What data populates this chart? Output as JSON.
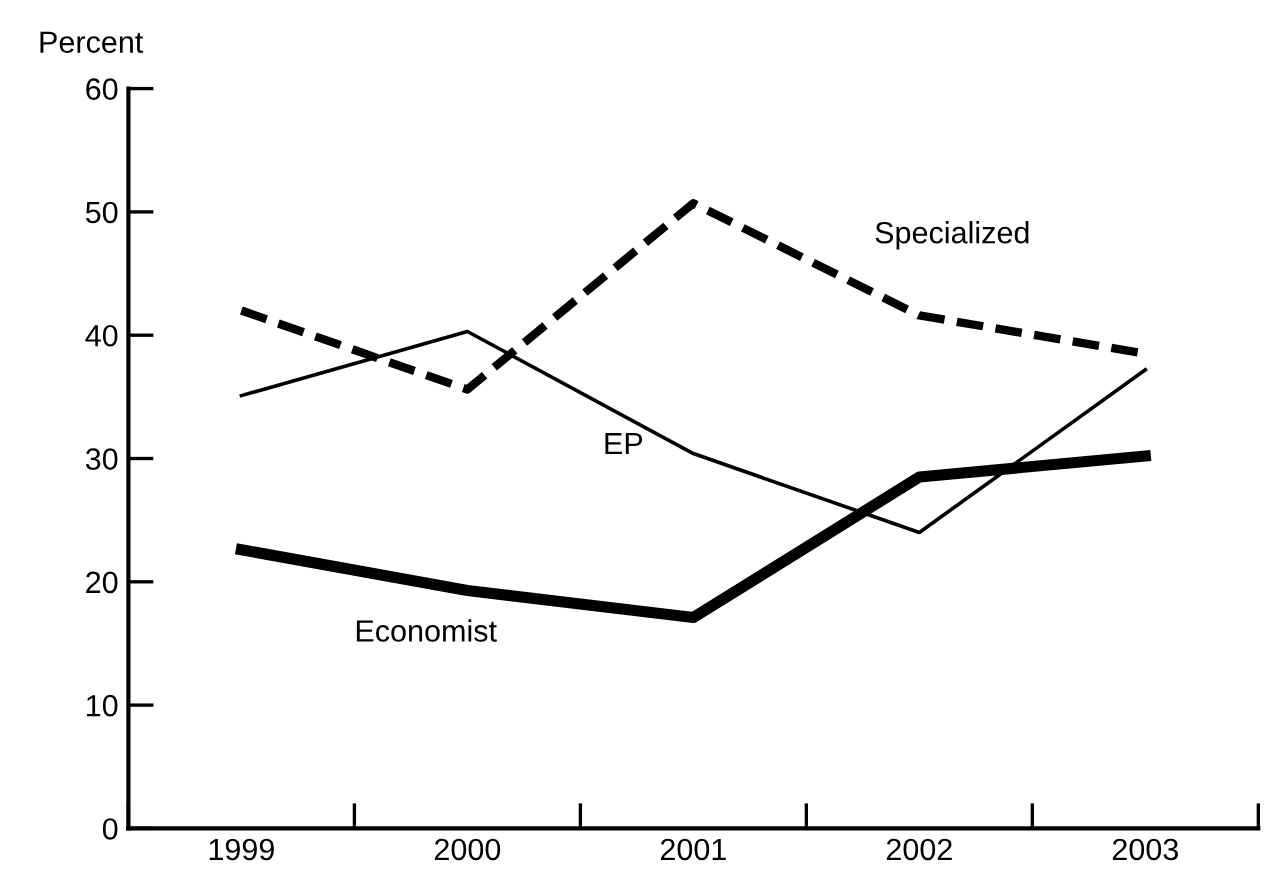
{
  "chart_data": {
    "type": "line",
    "ylabel": "Percent",
    "categories": [
      "1999",
      "2000",
      "2001",
      "2002",
      "2003"
    ],
    "ylim": [
      0,
      60
    ],
    "yticks": [
      0,
      10,
      20,
      30,
      40,
      50,
      60
    ],
    "grid": false,
    "legend": false,
    "marker": "none",
    "series": [
      {
        "name": "Specialized",
        "color": "#000000",
        "line_style": "dashed",
        "values": [
          42,
          35.6,
          50.7,
          41.6,
          38.5
        ]
      },
      {
        "name": "EP",
        "color": "#000000",
        "line_style": "solid",
        "values": [
          35.1,
          40.3,
          30.4,
          24,
          37.2
        ]
      },
      {
        "name": "Economist",
        "color": "#000000",
        "line_style": "solid",
        "values": [
          22.6,
          19.3,
          17.1,
          28.5,
          30.2
        ]
      }
    ]
  }
}
